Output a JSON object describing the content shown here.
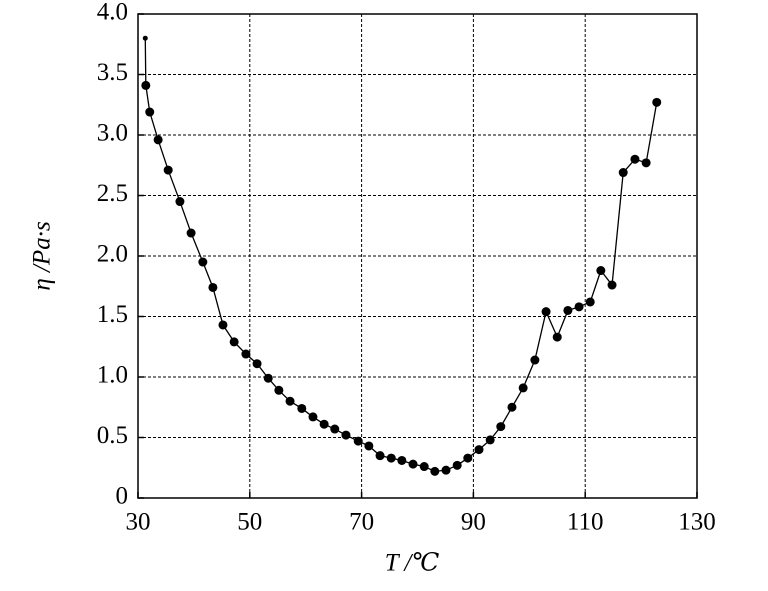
{
  "chart_data": {
    "type": "line",
    "x_label": "T /℃",
    "y_label": "η /Pa·s",
    "x": [
      31.3,
      31.4,
      32.1,
      33.6,
      35.4,
      37.5,
      39.5,
      41.6,
      43.4,
      45.2,
      47.2,
      49.3,
      51.3,
      53.3,
      55.2,
      57.2,
      59.3,
      61.3,
      63.3,
      65.2,
      67.2,
      69.4,
      71.3,
      73.3,
      75.3,
      77.2,
      79.2,
      81.2,
      83.1,
      85.1,
      87.1,
      89.0,
      91.0,
      93.0,
      94.9,
      96.9,
      98.9,
      101.0,
      103.0,
      105.0,
      106.9,
      108.9,
      110.9,
      112.8,
      114.8,
      116.8,
      118.9,
      120.9,
      122.8
    ],
    "values": [
      3.8,
      3.41,
      3.19,
      2.96,
      2.71,
      2.45,
      2.19,
      1.95,
      1.74,
      1.43,
      1.29,
      1.19,
      1.11,
      0.99,
      0.89,
      0.8,
      0.74,
      0.67,
      0.61,
      0.57,
      0.52,
      0.47,
      0.43,
      0.35,
      0.33,
      0.31,
      0.28,
      0.26,
      0.22,
      0.23,
      0.27,
      0.33,
      0.4,
      0.48,
      0.59,
      0.75,
      0.91,
      1.14,
      1.54,
      1.33,
      1.55,
      1.58,
      1.62,
      1.88,
      1.76,
      2.69,
      2.8,
      2.77,
      3.27
    ],
    "color": "#000000",
    "xlim": [
      30,
      130
    ],
    "xticks": [
      30,
      50,
      70,
      90,
      110,
      130
    ],
    "ylim": [
      0,
      4
    ],
    "yticks": [
      0,
      0.5,
      {
        "value": 1,
        "label": "1.0"
      },
      1.5,
      {
        "value": 2,
        "label": "2.0"
      },
      2.5,
      {
        "value": 3,
        "label": "3.0"
      },
      3.5,
      {
        "value": 4,
        "label": "4.0"
      }
    ],
    "grid": true
  }
}
